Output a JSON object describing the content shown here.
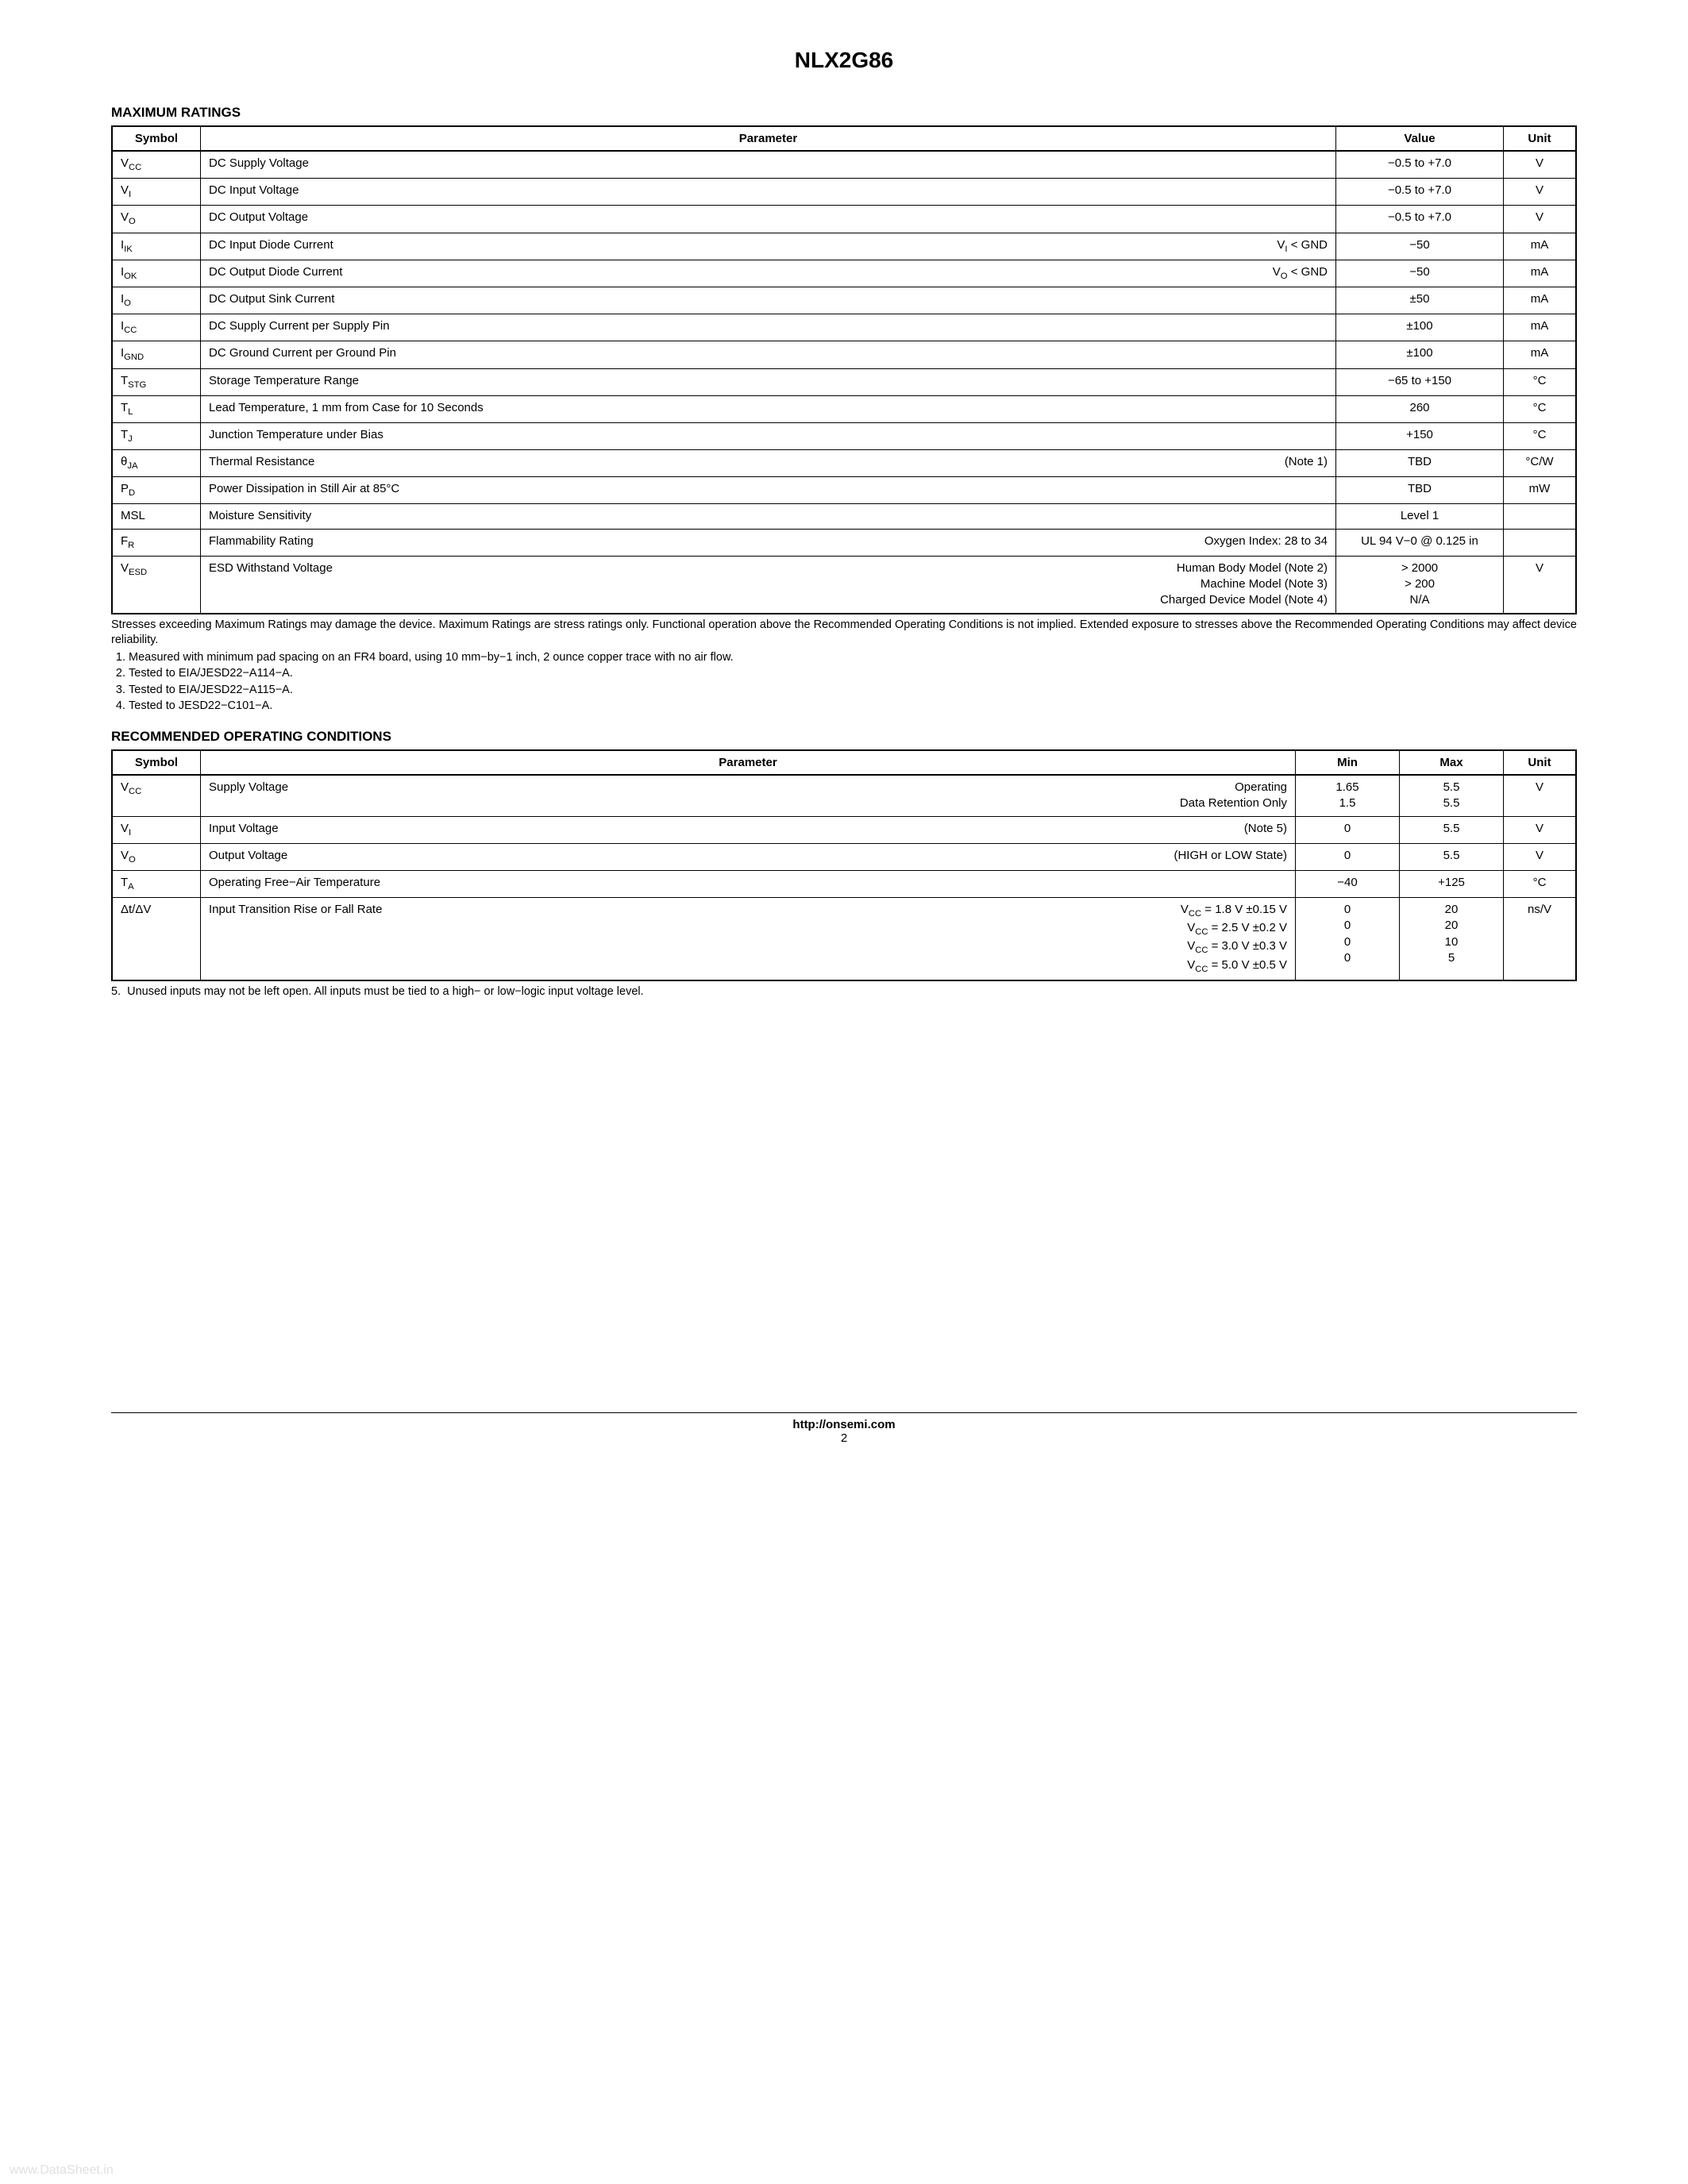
{
  "part_number": "NLX2G86",
  "section1_title": "MAXIMUM RATINGS",
  "table1_headers": {
    "symbol": "Symbol",
    "parameter": "Parameter",
    "value": "Value",
    "unit": "Unit"
  },
  "table1_rows": [
    {
      "sym": "V<sub>CC</sub>",
      "paramL": "DC Supply Voltage",
      "paramR": "",
      "value": "−0.5 to +7.0",
      "unit": "V"
    },
    {
      "sym": "V<sub>I</sub>",
      "paramL": "DC Input Voltage",
      "paramR": "",
      "value": "−0.5 to +7.0",
      "unit": "V"
    },
    {
      "sym": "V<sub>O</sub>",
      "paramL": "DC Output Voltage",
      "paramR": "",
      "value": "−0.5 to +7.0",
      "unit": "V"
    },
    {
      "sym": "I<sub>IK</sub>",
      "paramL": "DC Input Diode Current",
      "paramR": "V<sub>I</sub> &lt; GND",
      "value": "−50",
      "unit": "mA"
    },
    {
      "sym": "I<sub>OK</sub>",
      "paramL": "DC Output Diode Current",
      "paramR": "V<sub>O</sub> &lt; GND",
      "value": "−50",
      "unit": "mA"
    },
    {
      "sym": "I<sub>O</sub>",
      "paramL": "DC Output Sink Current",
      "paramR": "",
      "value": "±50",
      "unit": "mA"
    },
    {
      "sym": "I<sub>CC</sub>",
      "paramL": "DC Supply Current per Supply Pin",
      "paramR": "",
      "value": "±100",
      "unit": "mA"
    },
    {
      "sym": "I<sub>GND</sub>",
      "paramL": "DC Ground Current per Ground Pin",
      "paramR": "",
      "value": "±100",
      "unit": "mA"
    },
    {
      "sym": "T<sub>STG</sub>",
      "paramL": "Storage Temperature Range",
      "paramR": "",
      "value": "−65 to +150",
      "unit": "°C"
    },
    {
      "sym": "T<sub>L</sub>",
      "paramL": "Lead Temperature, 1 mm from Case for 10 Seconds",
      "paramR": "",
      "value": "260",
      "unit": "°C"
    },
    {
      "sym": "T<sub>J</sub>",
      "paramL": "Junction Temperature under Bias",
      "paramR": "",
      "value": "+150",
      "unit": "°C"
    },
    {
      "sym": "θ<sub>JA</sub>",
      "paramL": "Thermal Resistance",
      "paramR": "(Note 1)",
      "value": "TBD",
      "unit": "°C/W"
    },
    {
      "sym": "P<sub>D</sub>",
      "paramL": "Power Dissipation in Still Air at 85°C",
      "paramR": "",
      "value": "TBD",
      "unit": "mW"
    },
    {
      "sym": "MSL",
      "paramL": "Moisture Sensitivity",
      "paramR": "",
      "value": "Level 1",
      "unit": ""
    },
    {
      "sym": "F<sub>R</sub>",
      "paramL": "Flammability Rating",
      "paramR": "Oxygen Index: 28 to 34",
      "value": "UL 94 V−0 @ 0.125 in",
      "unit": ""
    },
    {
      "sym": "V<sub>ESD</sub>",
      "paramL": "ESD Withstand Voltage",
      "paramR": "Human Body Model (Note 2)<br>Machine Model (Note 3)<br>Charged Device Model (Note 4)",
      "value": "&gt; 2000<br>&gt; 200<br>N/A",
      "unit": "V"
    }
  ],
  "table1_footnote": "Stresses exceeding Maximum Ratings may damage the device. Maximum Ratings are stress ratings only. Functional operation above the Recommended Operating Conditions is not implied. Extended exposure to stresses above the Recommended Operating Conditions may affect device reliability.",
  "table1_notes": [
    "Measured with minimum pad spacing on an FR4 board, using 10 mm−by−1 inch, 2 ounce copper trace with no air flow.",
    "Tested to EIA/JESD22−A114−A.",
    "Tested to EIA/JESD22−A115−A.",
    "Tested to JESD22−C101−A."
  ],
  "section2_title": "RECOMMENDED OPERATING CONDITIONS",
  "table2_headers": {
    "symbol": "Symbol",
    "parameter": "Parameter",
    "min": "Min",
    "max": "Max",
    "unit": "Unit"
  },
  "table2_rows": [
    {
      "sym": "V<sub>CC</sub>",
      "paramL": "Supply Voltage",
      "paramR": "Operating<br>Data Retention Only",
      "min": "1.65<br>1.5",
      "max": "5.5<br>5.5",
      "unit": "V"
    },
    {
      "sym": "V<sub>I</sub>",
      "paramL": "Input Voltage",
      "paramR": "(Note 5)",
      "min": "0",
      "max": "5.5",
      "unit": "V"
    },
    {
      "sym": "V<sub>O</sub>",
      "paramL": "Output Voltage",
      "paramR": "(HIGH or LOW State)",
      "min": "0",
      "max": "5.5",
      "unit": "V"
    },
    {
      "sym": "T<sub>A</sub>",
      "paramL": "Operating Free−Air Temperature",
      "paramR": "",
      "min": "−40",
      "max": "+125",
      "unit": "°C"
    },
    {
      "sym": "Δt/ΔV",
      "paramL": "Input Transition Rise or Fall Rate",
      "paramR": "V<sub>CC</sub> = 1.8 V ±0.15 V<br>V<sub>CC</sub> = 2.5 V ±0.2 V<br>V<sub>CC</sub> = 3.0 V ±0.3 V<br>V<sub>CC</sub> = 5.0 V ±0.5 V",
      "min": "0<br>0<br>0<br>0",
      "max": "20<br>20<br>10<br>5",
      "unit": "ns/V"
    }
  ],
  "table2_note5": "5.&nbsp;&nbsp;Unused inputs may not be left open. All inputs must be tied to a high− or low−logic input voltage level.",
  "footer_url": "http://onsemi.com",
  "footer_page": "2",
  "watermark": "www.DataSheet.in"
}
